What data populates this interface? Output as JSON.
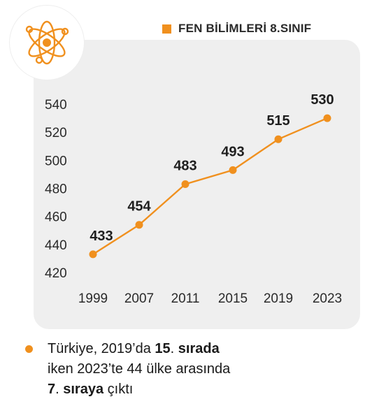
{
  "legend": {
    "label": "FEN BİLİMLERİ 8.SINIF",
    "color": "#f0901e"
  },
  "icon": {
    "name": "atom-icon",
    "color": "#f0901e"
  },
  "chart_data": {
    "type": "line",
    "title": "",
    "xlabel": "",
    "ylabel": "",
    "x": [
      "1999",
      "2007",
      "2011",
      "2015",
      "2019",
      "2023"
    ],
    "series": [
      {
        "name": "FEN BİLİMLERİ 8.SINIF",
        "values": [
          433,
          454,
          483,
          493,
          515,
          530
        ],
        "color": "#f0901e"
      }
    ],
    "yticks": [
      "540",
      "520",
      "500",
      "480",
      "460",
      "440",
      "420"
    ],
    "ylim": [
      420,
      540
    ],
    "grid": false,
    "legend_position": "top-right"
  },
  "note": {
    "line1": {
      "pre": "Türkiye, 2019’da ",
      "b1": "15",
      "mid": ". ",
      "b2": "sırada"
    },
    "line2": "iken 2023’te 44 ülke arasında",
    "line3": {
      "b1": "7",
      "mid": ". ",
      "b2": "sıraya",
      "post": " çıktı"
    },
    "bullet_color": "#f0901e"
  }
}
